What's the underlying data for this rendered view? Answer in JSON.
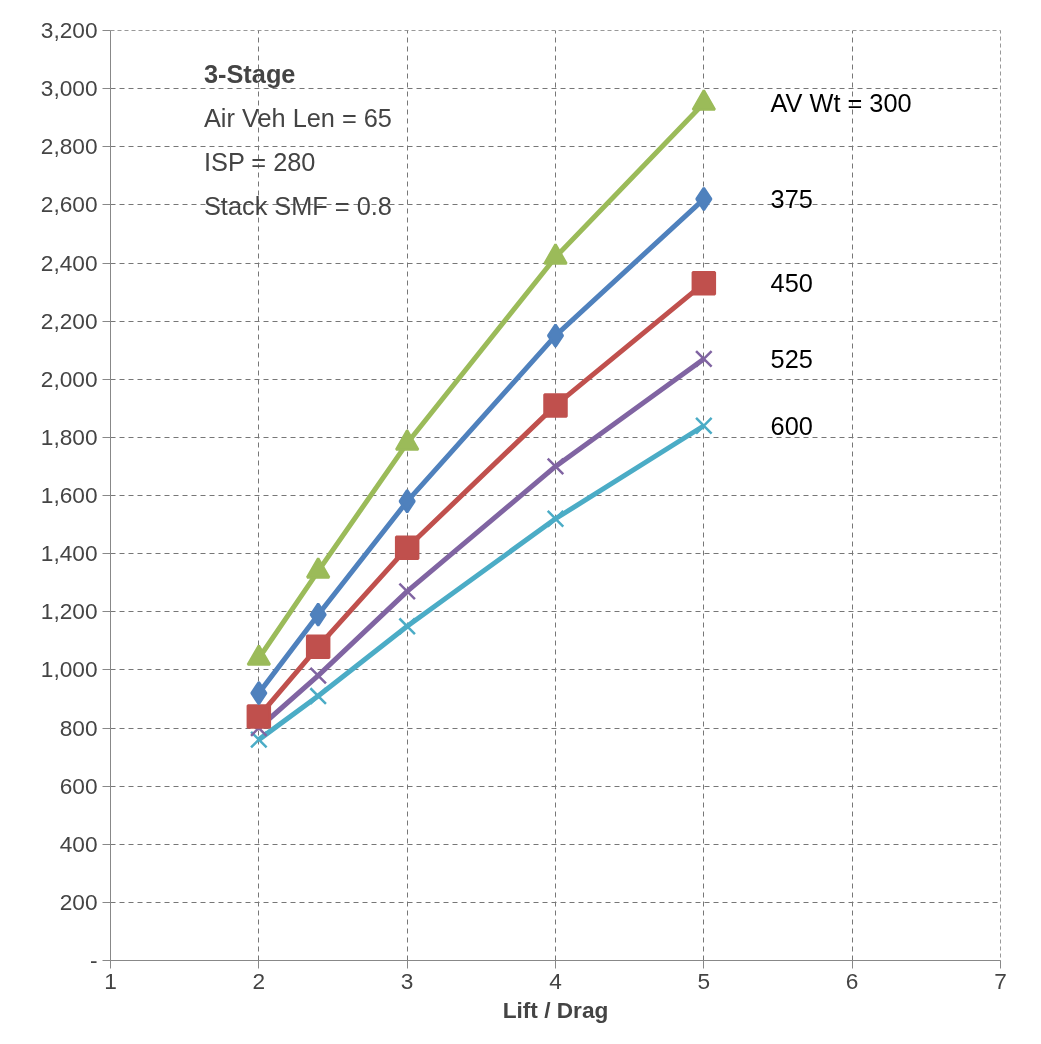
{
  "chart_data": {
    "type": "line",
    "xlabel": "Lift / Drag",
    "x": [
      2,
      2.4,
      3,
      4,
      5
    ],
    "series": [
      {
        "name": "AV Wt = 300",
        "color": "#9bbb59",
        "marker": "triangle",
        "values": [
          1040,
          1340,
          1780,
          2420,
          2950
        ]
      },
      {
        "name": "375",
        "color": "#4f81bd",
        "marker": "diamond",
        "values": [
          920,
          1190,
          1580,
          2150,
          2620
        ]
      },
      {
        "name": "450",
        "color": "#c0504d",
        "marker": "square",
        "values": [
          840,
          1080,
          1420,
          1910,
          2330
        ]
      },
      {
        "name": "525",
        "color": "#8064a2",
        "marker": "cross",
        "values": [
          800,
          980,
          1270,
          1700,
          2070
        ]
      },
      {
        "name": "600",
        "color": "#4bacc6",
        "marker": "cross",
        "values": [
          760,
          910,
          1150,
          1520,
          1840
        ]
      }
    ],
    "xlim": [
      1,
      7
    ],
    "xticks": [
      1,
      2,
      3,
      4,
      5,
      6,
      7
    ],
    "ylim": [
      0,
      3200
    ],
    "yticks": [
      {
        "value": 0,
        "label": "-"
      },
      {
        "value": 200,
        "label": "200"
      },
      {
        "value": 400,
        "label": "400"
      },
      {
        "value": 600,
        "label": "600"
      },
      {
        "value": 800,
        "label": "800"
      },
      {
        "value": 1000,
        "label": "1,000"
      },
      {
        "value": 1200,
        "label": "1,200"
      },
      {
        "value": 1400,
        "label": "1,400"
      },
      {
        "value": 1600,
        "label": "1,600"
      },
      {
        "value": 1800,
        "label": "1,800"
      },
      {
        "value": 2000,
        "label": "2,000"
      },
      {
        "value": 2200,
        "label": "2,200"
      },
      {
        "value": 2400,
        "label": "2,400"
      },
      {
        "value": 2600,
        "label": "2,600"
      },
      {
        "value": 2800,
        "label": "2,800"
      },
      {
        "value": 3000,
        "label": "3,000"
      },
      {
        "value": 3200,
        "label": "3,200"
      }
    ],
    "grid": true,
    "legend": "right",
    "line_style": "solid",
    "annotations": [
      "3-Stage",
      "Air Veh Len = 65",
      "ISP = 280",
      "Stack SMF = 0.8"
    ]
  }
}
